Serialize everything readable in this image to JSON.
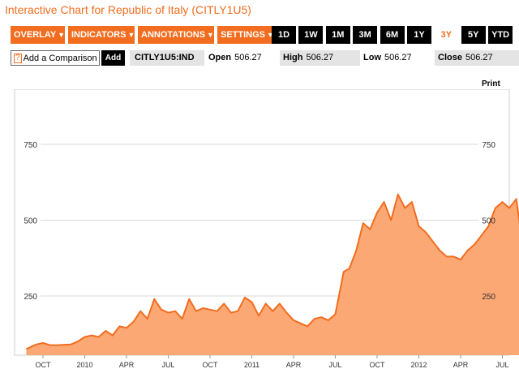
{
  "title": "Interactive Chart for Republic of Italy (CITLY1U5)",
  "menus": [
    {
      "label": "OVERLAY"
    },
    {
      "label": "INDICATORS"
    },
    {
      "label": "ANNOTATIONS"
    },
    {
      "label": "SETTINGS"
    }
  ],
  "ranges": [
    "1D",
    "1W",
    "1M",
    "3M",
    "6M",
    "1Y",
    "3Y",
    "5Y",
    "YTD"
  ],
  "active_range": "3Y",
  "compare": {
    "help": "?",
    "label": "Add a Comparison",
    "add": "Add"
  },
  "ticker": "CITLY1U5:IND",
  "stats": {
    "open_label": "Open",
    "open_value": "506.27",
    "high_label": "High",
    "high_value": "506.27",
    "low_label": "Low",
    "low_value": "506.27",
    "close_label": "Close",
    "close_value": "506.27"
  },
  "print_label": "Print",
  "colors": {
    "accent": "#f26d1f",
    "fill": "#fba874",
    "line": "#f26d1f",
    "grid": "#d9d9d9"
  },
  "chart_data": {
    "type": "area",
    "y_ticks": [
      250,
      500,
      750
    ],
    "ylim": [
      0,
      850
    ],
    "x_ticks": [
      "OCT",
      "2010",
      "APR",
      "JUL",
      "OCT",
      "2011",
      "APR",
      "JUL",
      "OCT",
      "2012",
      "APR",
      "JUL"
    ],
    "x_tick_months": [
      0,
      3,
      6,
      9,
      12,
      15,
      18,
      21,
      24,
      27,
      30,
      33
    ],
    "x": [
      -1.2,
      -0.5,
      0,
      0.5,
      1,
      2,
      2.5,
      3,
      3.5,
      4,
      4.5,
      5,
      5.5,
      6,
      6.5,
      7,
      7.5,
      8,
      8.5,
      9,
      9.5,
      10,
      10.5,
      11,
      11.5,
      12,
      12.5,
      13,
      13.5,
      14,
      14.5,
      15,
      15.5,
      16,
      16.5,
      17,
      17.5,
      18,
      18.5,
      19,
      19.5,
      20,
      20.5,
      21,
      21.3,
      21.6,
      22,
      22.5,
      23,
      23.5,
      24,
      24.5,
      25,
      25.5,
      26,
      26.5,
      27,
      27.5,
      28,
      28.5,
      29,
      29.5,
      30,
      30.5,
      31,
      31.5,
      32,
      32.5,
      33,
      33.5,
      34,
      34.3,
      34.6
    ],
    "y": [
      75,
      90,
      95,
      88,
      88,
      90,
      100,
      115,
      120,
      115,
      135,
      120,
      150,
      145,
      165,
      200,
      175,
      240,
      205,
      195,
      200,
      175,
      240,
      200,
      210,
      205,
      200,
      225,
      195,
      200,
      245,
      230,
      185,
      225,
      200,
      225,
      195,
      170,
      160,
      150,
      175,
      180,
      170,
      190,
      260,
      330,
      340,
      400,
      490,
      470,
      525,
      560,
      500,
      585,
      540,
      560,
      480,
      460,
      430,
      400,
      380,
      380,
      370,
      400,
      420,
      450,
      480,
      540,
      560,
      540,
      570,
      470,
      490
    ]
  }
}
